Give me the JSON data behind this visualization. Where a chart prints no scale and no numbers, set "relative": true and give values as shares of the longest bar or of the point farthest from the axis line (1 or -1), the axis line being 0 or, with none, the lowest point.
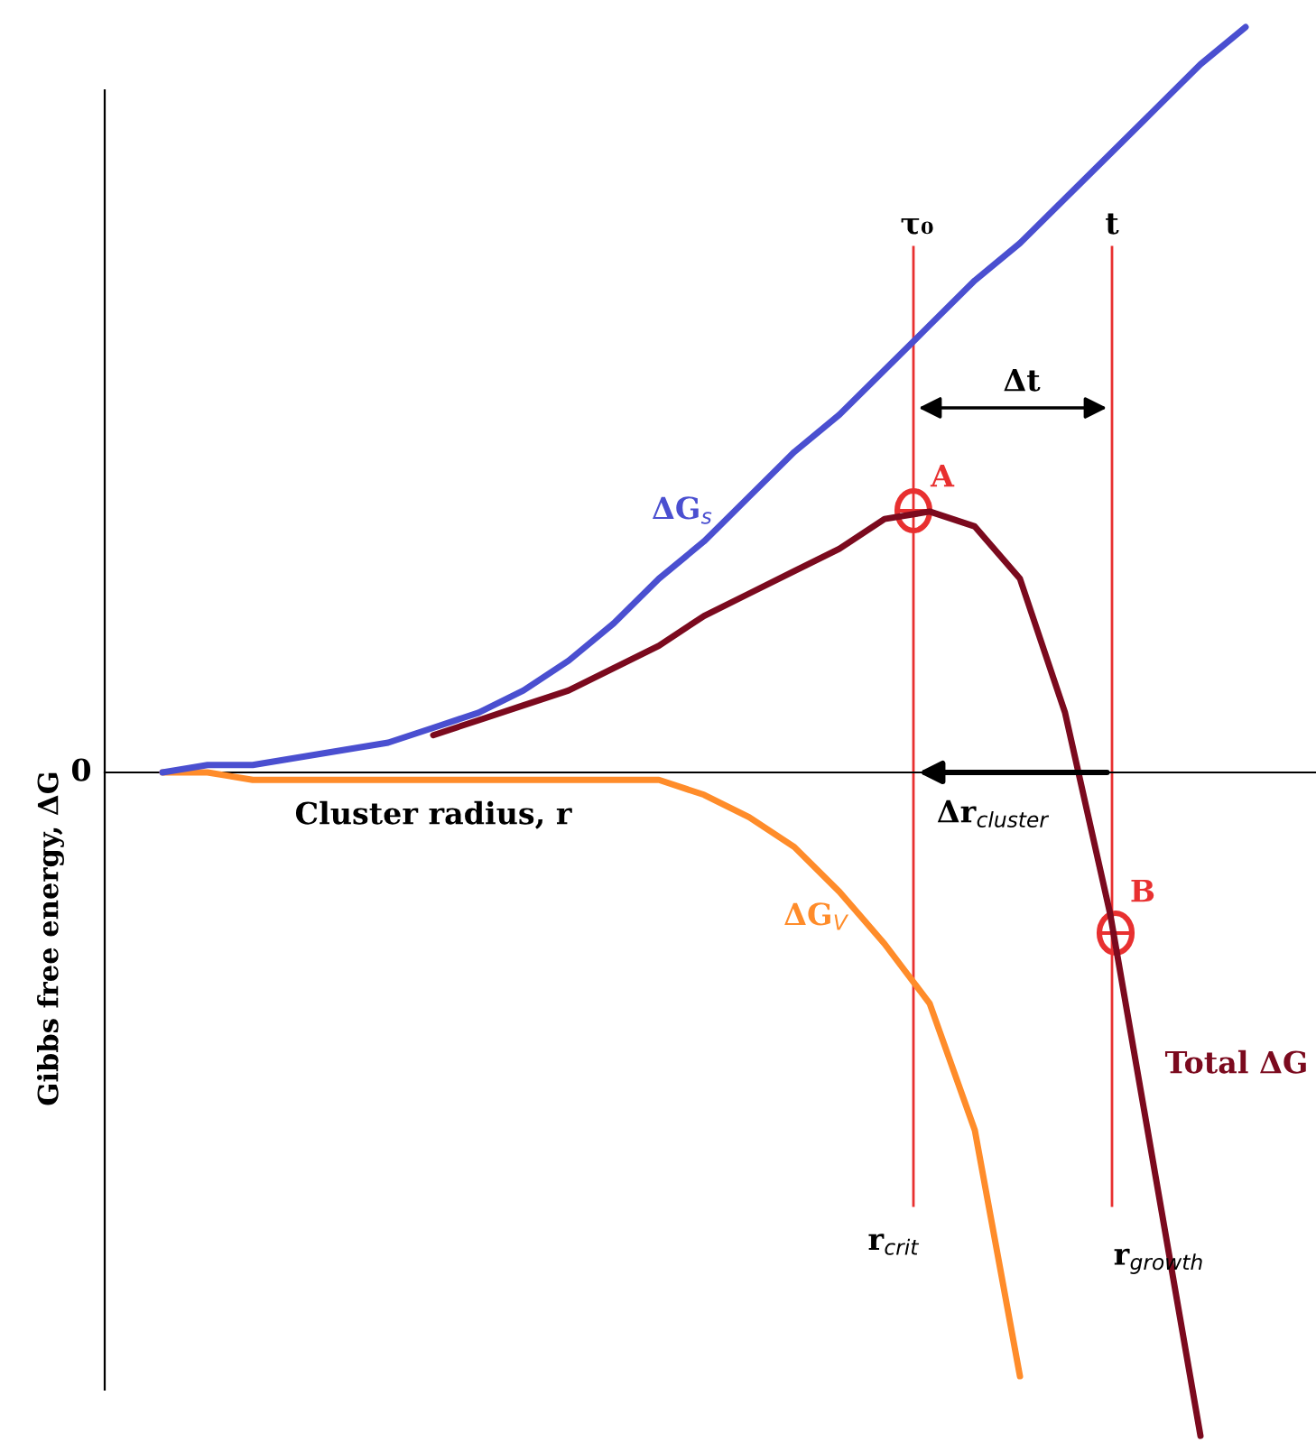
{
  "chart_data": {
    "type": "line",
    "relative": true,
    "xlabel": "Cluster radius, r",
    "ylabel": "Gibbs free energy, ΔG",
    "categories": [
      null,
      null,
      null,
      null,
      null,
      null,
      null,
      null,
      null,
      null,
      null,
      null,
      null,
      null,
      null,
      null,
      null,
      null,
      null,
      null,
      null,
      null,
      null,
      null,
      null
    ],
    "series": [
      {
        "name": "ΔG$_{s}$",
        "color": "#4a4fd0",
        "values": [
          0,
          0.01,
          0.01,
          0.02,
          0.03,
          0.04,
          0.06,
          0.08,
          0.11,
          0.15,
          0.2,
          0.26,
          0.31,
          0.37,
          0.43,
          0.48,
          0.54,
          0.6,
          0.66,
          0.71,
          0.77,
          0.83,
          0.89,
          0.95,
          1
        ]
      },
      {
        "name": "ΔG$_{V}$",
        "color": "#ff8c2a",
        "values": [
          0,
          0,
          -0.01,
          -0.01,
          -0.01,
          -0.01,
          -0.01,
          -0.01,
          -0.01,
          -0.01,
          -0.01,
          -0.01,
          -0.03,
          -0.06,
          -0.1,
          -0.16,
          -0.23,
          -0.31,
          -0.48,
          -0.81,
          null,
          null,
          null,
          null,
          null
        ]
      },
      {
        "name": "Total ΔG",
        "color": "#7b0a1e",
        "values": [
          null,
          null,
          null,
          null,
          null,
          null,
          0.05,
          0.07,
          0.09,
          0.11,
          0.14,
          0.17,
          0.21,
          0.24,
          0.27,
          0.3,
          0.34,
          0.35,
          0.33,
          0.26,
          0.08,
          -0.19,
          -0.54,
          -0.89,
          null
        ]
      }
    ],
    "annotations": [
      "0",
      "τ₀",
      "t",
      "Δt",
      "Δr$_{cluster}$",
      "r$_{crit}$",
      "r$_{growth}$",
      "A",
      "B"
    ],
    "marker": "none",
    "line_style": "solid"
  }
}
